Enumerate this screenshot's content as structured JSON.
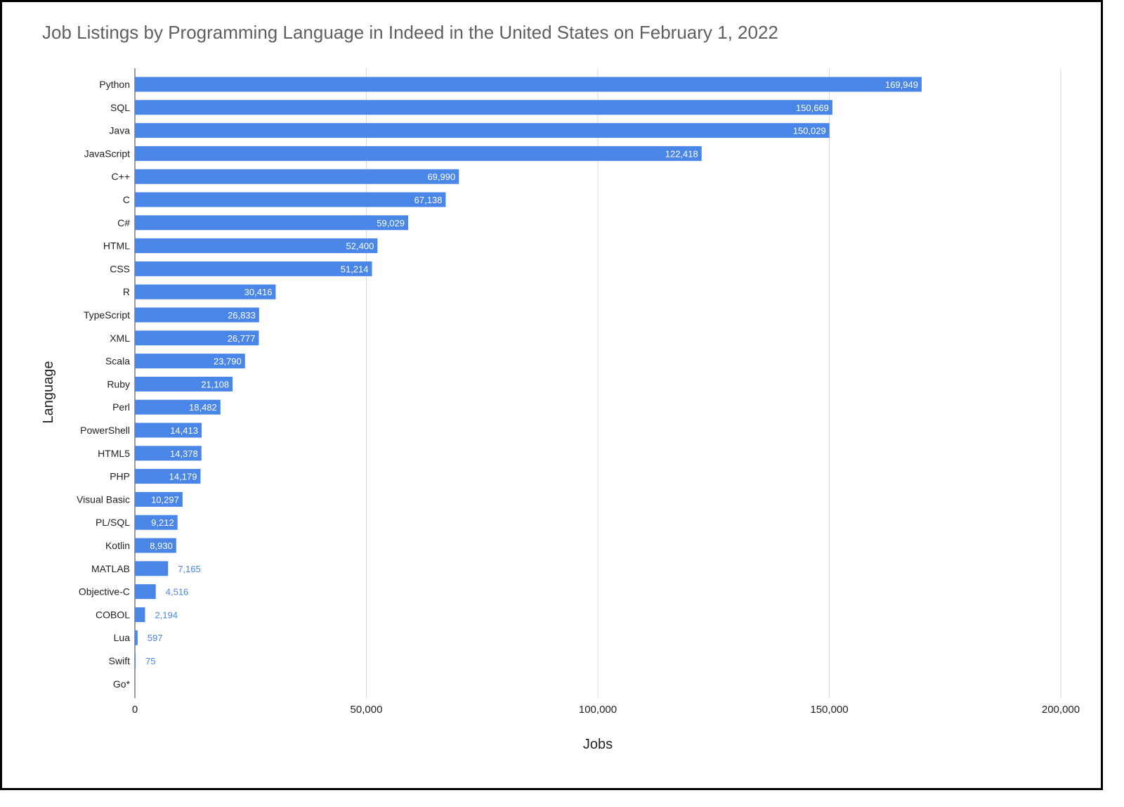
{
  "chart_data": {
    "type": "bar",
    "orientation": "horizontal",
    "title": "Job Listings by Programming Language in Indeed in the United States on February 1, 2022",
    "xlabel": "Jobs",
    "ylabel": "Language",
    "xlim": [
      0,
      200000
    ],
    "xticks": [
      0,
      50000,
      100000,
      150000,
      200000
    ],
    "xtick_labels": [
      "0",
      "50,000",
      "100,000",
      "150,000",
      "200,000"
    ],
    "grid": true,
    "bar_color": "#4a86e8",
    "categories": [
      "Python",
      "SQL",
      "Java",
      "JavaScript",
      "C++",
      "C",
      "C#",
      "HTML",
      "CSS",
      "R",
      "TypeScript",
      "XML",
      "Scala",
      "Ruby",
      "Perl",
      "PowerShell",
      "HTML5",
      "PHP",
      "Visual Basic",
      "PL/SQL",
      "Kotlin",
      "MATLAB",
      "Objective-C",
      "COBOL",
      "Lua",
      "Swift",
      "Go*"
    ],
    "values": [
      169949,
      150669,
      150029,
      122418,
      69990,
      67138,
      59029,
      52400,
      51214,
      30416,
      26833,
      26777,
      23790,
      21108,
      18482,
      14413,
      14378,
      14179,
      10297,
      9212,
      8930,
      7165,
      4516,
      2194,
      597,
      75,
      null
    ],
    "value_labels": [
      "169,949",
      "150,669",
      "150,029",
      "122,418",
      "69,990",
      "67,138",
      "59,029",
      "52,400",
      "51,214",
      "30,416",
      "26,833",
      "26,777",
      "23,790",
      "21,108",
      "18,482",
      "14,413",
      "14,378",
      "14,179",
      "10,297",
      "9,212",
      "8,930",
      "7,165",
      "4,516",
      "2,194",
      "597",
      "75",
      ""
    ]
  }
}
